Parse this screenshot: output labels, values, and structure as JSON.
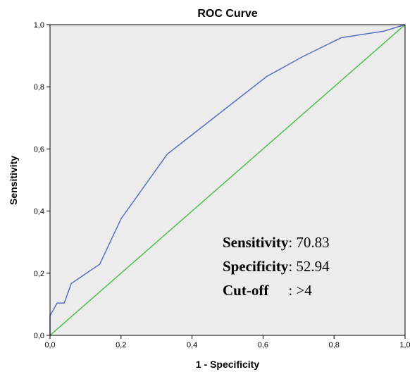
{
  "chart_data": {
    "type": "line",
    "title": "ROC Curve",
    "xlabel": "1 - Specificity",
    "ylabel": "Sensitivity",
    "xlim": [
      0,
      1
    ],
    "ylim": [
      0,
      1
    ],
    "x_ticks": [
      "0,0",
      "0,2",
      "0,4",
      "0,6",
      "0,8",
      "1,0"
    ],
    "y_ticks": [
      "0,0",
      "0,2",
      "0,4",
      "0,6",
      "0,8",
      "1,0"
    ],
    "grid": false,
    "plot_background": "#ececec",
    "series": [
      {
        "color": "#5a6fbf",
        "x": [
          0,
          0,
          0.02,
          0.04,
          0.06,
          0.14,
          0.2,
          0.33,
          0.61,
          0.71,
          0.82,
          0.94,
          1.0
        ],
        "y": [
          0,
          0.063,
          0.104,
          0.104,
          0.167,
          0.229,
          0.375,
          0.583,
          0.833,
          0.896,
          0.958,
          0.979,
          1.0
        ]
      },
      {
        "color": "#4fbf4f",
        "x": [
          0,
          1
        ],
        "y": [
          0,
          1
        ]
      }
    ],
    "annotations": [
      {
        "label": "Sensitivity",
        "value": ": 70.83"
      },
      {
        "label": "Specificity",
        "value": ": 52.94"
      },
      {
        "label": "Cut-off",
        "value": ": >4"
      }
    ]
  }
}
